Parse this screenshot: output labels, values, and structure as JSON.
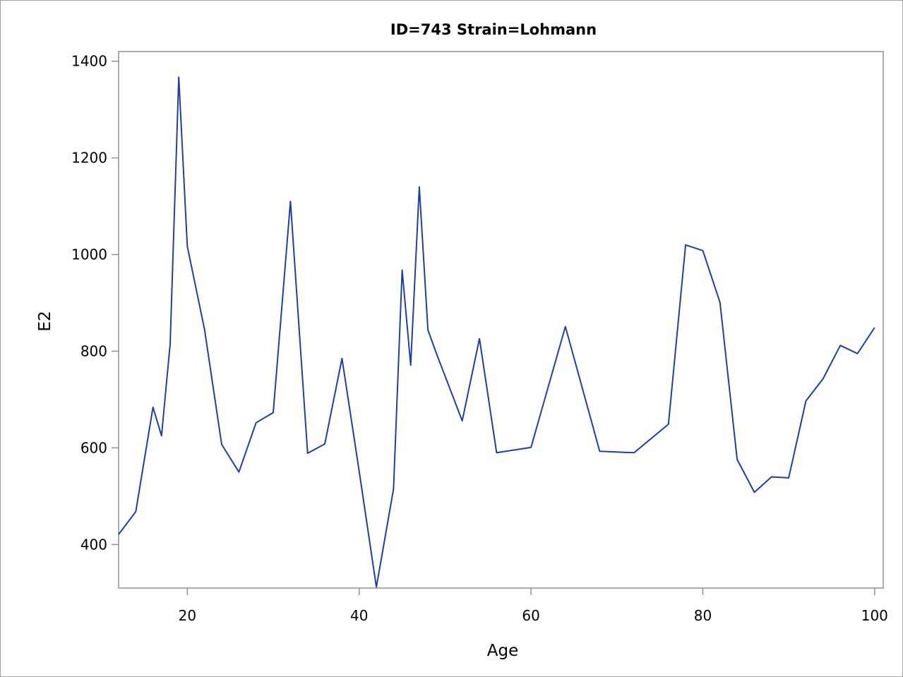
{
  "chart_data": {
    "type": "line",
    "title": "ID=743 Strain=Lohmann",
    "xlabel": "Age",
    "ylabel": "E2",
    "xlim": [
      12,
      101
    ],
    "ylim": [
      310,
      1420
    ],
    "xticks": [
      20,
      40,
      60,
      80,
      100
    ],
    "yticks": [
      400,
      600,
      800,
      1000,
      1200,
      1400
    ],
    "grid": false,
    "line_color": "#1f3fa3",
    "series": [
      {
        "x": [
          12,
          14,
          16,
          17,
          18,
          19,
          20,
          22,
          24,
          26,
          28,
          30,
          32,
          34,
          36,
          38,
          40,
          42,
          44,
          45,
          46,
          47,
          48,
          49,
          52,
          54,
          56,
          60,
          64,
          68,
          72,
          76,
          78,
          80,
          82,
          84,
          86,
          88,
          90,
          92,
          94,
          96,
          98,
          100
        ],
        "y": [
          421,
          468,
          684,
          625,
          815,
          1367,
          1017,
          845,
          607,
          550,
          652,
          673,
          1110,
          589,
          608,
          785,
          552,
          312,
          515,
          968,
          771,
          1140,
          844,
          795,
          656,
          826,
          590,
          601,
          851,
          593,
          590,
          649,
          1020,
          1008,
          901,
          576,
          508,
          540,
          538,
          697,
          743,
          812,
          795,
          849
        ]
      }
    ]
  }
}
